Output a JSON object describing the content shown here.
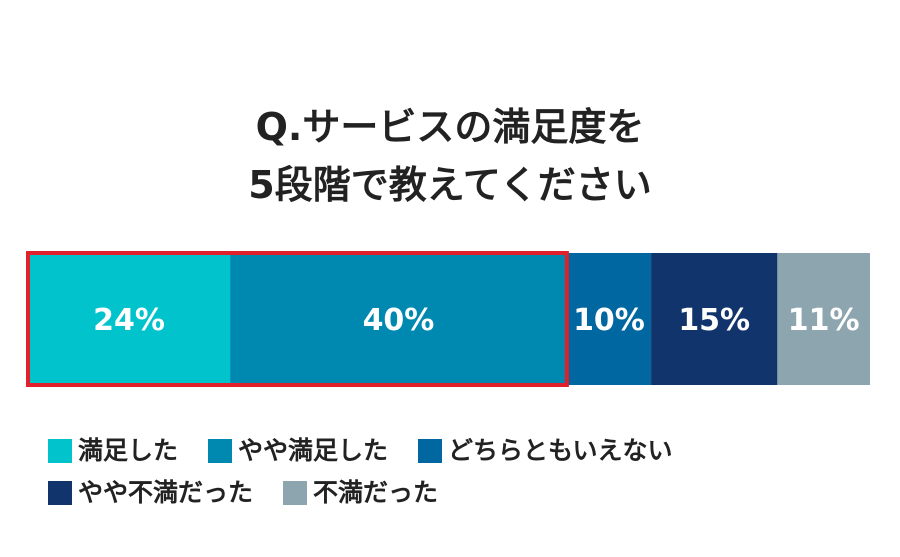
{
  "title_lines": [
    "Q.サービスの満足度を",
    "5段階で教えてください"
  ],
  "chart_data": {
    "type": "bar",
    "orientation": "horizontal-stacked-100",
    "categories": [
      "満足した",
      "やや満足した",
      "どちらともいえない",
      "やや不満だった",
      "不満だった"
    ],
    "values": [
      24,
      40,
      10,
      15,
      11
    ],
    "data_labels": [
      "24%",
      "40%",
      "10%",
      "15%",
      "11%"
    ],
    "colors": [
      "#00c3cc",
      "#0089b0",
      "#0067a0",
      "#12346c",
      "#8ca5ae"
    ],
    "highlight": {
      "from_index": 0,
      "to_index": 1,
      "color": "#e0202a"
    },
    "legend_position": "bottom",
    "grid": false
  },
  "legend_rows": [
    [
      {
        "label": "満足した",
        "color": "#00c3cc"
      },
      {
        "label": "やや満足した",
        "color": "#0089b0"
      },
      {
        "label": "どちらともいえない",
        "color": "#0067a0"
      }
    ],
    [
      {
        "label": "やや不満だった",
        "color": "#12346c"
      },
      {
        "label": "不満だった",
        "color": "#8ca5ae"
      }
    ]
  ]
}
